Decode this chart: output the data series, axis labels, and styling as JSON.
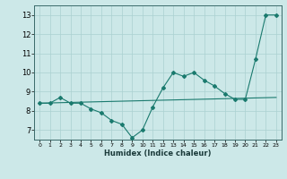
{
  "x": [
    0,
    1,
    2,
    3,
    4,
    5,
    6,
    7,
    8,
    9,
    10,
    11,
    12,
    13,
    14,
    15,
    16,
    17,
    18,
    19,
    20,
    21,
    22,
    23
  ],
  "y_curve": [
    8.4,
    8.4,
    8.7,
    8.4,
    8.4,
    8.1,
    7.9,
    7.5,
    7.3,
    6.6,
    7.0,
    8.2,
    9.2,
    10.0,
    9.8,
    10.0,
    9.6,
    9.3,
    8.9,
    8.6,
    8.6,
    10.7,
    13.0,
    13.0
  ],
  "y_line_start": 8.4,
  "y_line_end": 8.7,
  "line_color": "#1a7a6e",
  "bg_color": "#cce8e8",
  "grid_color": "#aad0d0",
  "xlabel": "Humidex (Indice chaleur)",
  "ylim": [
    6.5,
    13.5
  ],
  "xlim": [
    -0.5,
    23.5
  ],
  "yticks": [
    7,
    8,
    9,
    10,
    11,
    12,
    13
  ],
  "xticks": [
    0,
    1,
    2,
    3,
    4,
    5,
    6,
    7,
    8,
    9,
    10,
    11,
    12,
    13,
    14,
    15,
    16,
    17,
    18,
    19,
    20,
    21,
    22,
    23
  ],
  "figwidth": 3.2,
  "figheight": 2.0,
  "dpi": 100
}
